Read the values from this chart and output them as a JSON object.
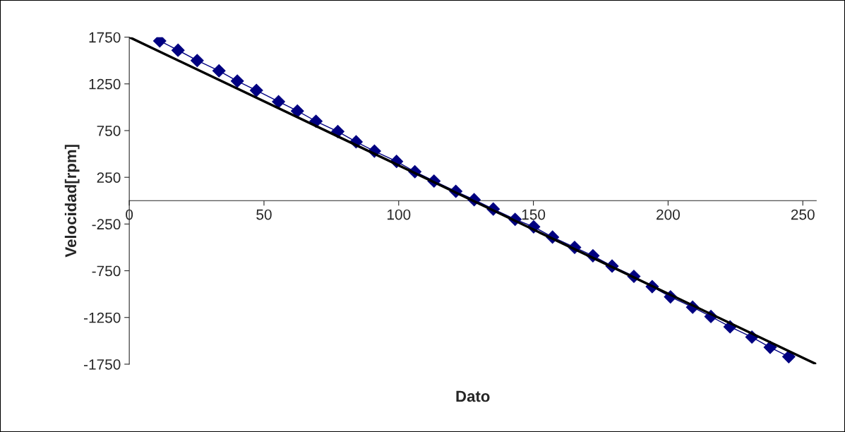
{
  "chart_data": {
    "type": "line",
    "xlabel": "Dato",
    "ylabel": "Velocidad[rpm]",
    "xlim": [
      0,
      255
    ],
    "ylim": [
      -1750,
      1750
    ],
    "xticks": [
      0,
      50,
      100,
      150,
      200,
      250
    ],
    "yticks": [
      -1750,
      -1250,
      -750,
      -250,
      250,
      750,
      1250,
      1750
    ],
    "grid": false,
    "legend": false,
    "series": [
      {
        "type": "line",
        "color": "#000080",
        "marker": "diamond",
        "line_style": "solid",
        "x": [
          11.3,
          18.1,
          25.2,
          33.3,
          40.1,
          47.2,
          55.4,
          62.4,
          69.3,
          77.4,
          84.2,
          91.0,
          99.2,
          106.0,
          113.1,
          121.2,
          128.0,
          135.1,
          143.2,
          150.1,
          157.1,
          165.3,
          172.1,
          179.2,
          187.3,
          194.1,
          200.9,
          209.1,
          215.9,
          223.0,
          231.1,
          237.9,
          244.8
        ],
        "values": [
          1710,
          1610,
          1500,
          1390,
          1280,
          1180,
          1060,
          960,
          850,
          740,
          630,
          530,
          420,
          310,
          210,
          100,
          10,
          -90,
          -200,
          -280,
          -390,
          -500,
          -590,
          -700,
          -810,
          -920,
          -1030,
          -1140,
          -1240,
          -1350,
          -1460,
          -1570,
          -1670
        ]
      },
      {
        "color": "#000000",
        "marker": "none",
        "line_style": "solid",
        "x": [
          0,
          255
        ],
        "values": [
          1750,
          -1750
        ]
      }
    ]
  }
}
